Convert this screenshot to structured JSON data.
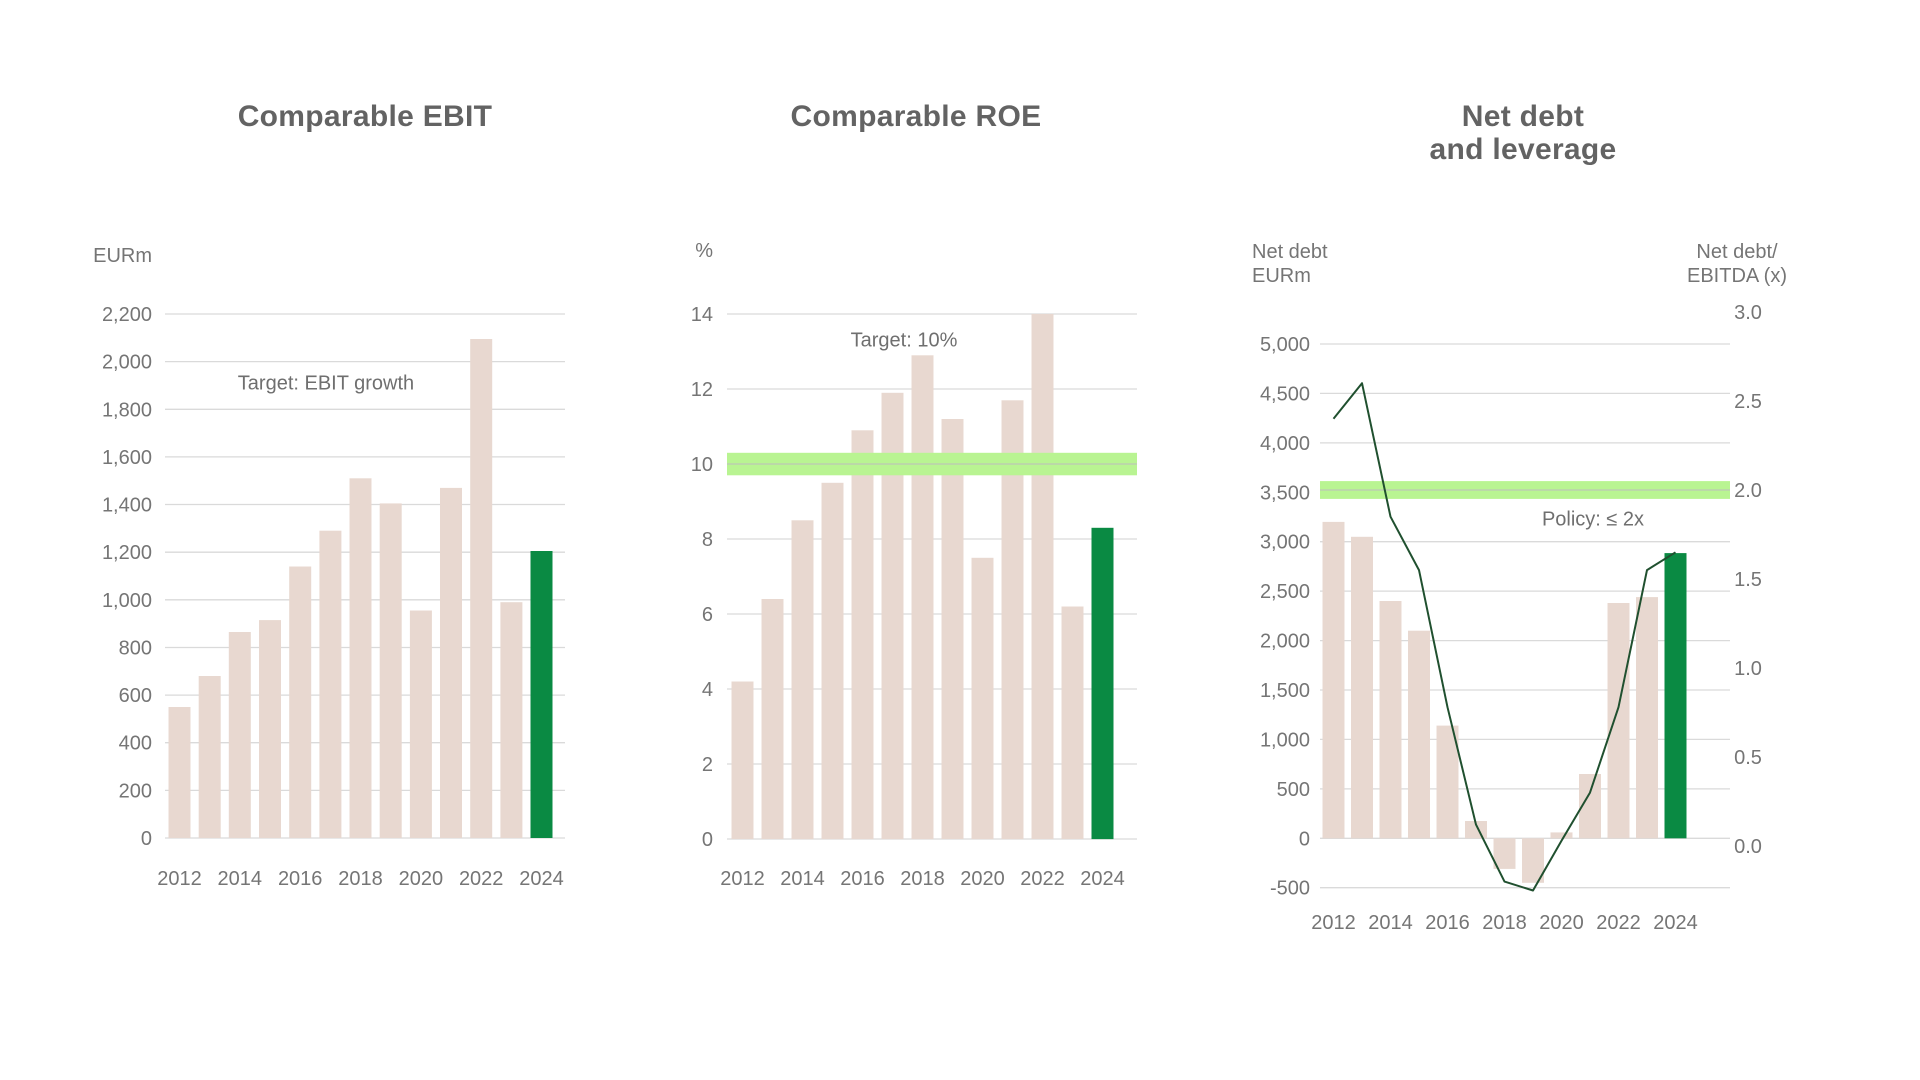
{
  "colors": {
    "bar": "#e8d8d0",
    "highlight_bar": "#0a8a43",
    "target_band": "#b9f492",
    "band_centerline": "#bdbdbd",
    "leverage_line": "#20502f",
    "grid": "#dadada",
    "tick_text": "#757575",
    "title_text": "#636363",
    "annotation_text": "#6f6f6f",
    "background": "#ffffff"
  },
  "chart_data": [
    {
      "type": "bar",
      "title": "Comparable EBIT",
      "ylabel": "EURm",
      "annotation": "Target: EBIT growth",
      "categories": [
        "2012",
        "2013",
        "2014",
        "2015",
        "2016",
        "2017",
        "2018",
        "2019",
        "2020",
        "2021",
        "2022",
        "2023",
        "2024"
      ],
      "values": [
        550,
        680,
        865,
        915,
        1140,
        1290,
        1510,
        1405,
        955,
        1470,
        2095,
        990,
        1205
      ],
      "highlight_year": "2024",
      "ylim": [
        0,
        2200
      ],
      "ytick_step": 200,
      "ytick_labels": [
        "0",
        "200",
        "400",
        "600",
        "800",
        "1,000",
        "1,200",
        "1,400",
        "1,600",
        "1,800",
        "2,000",
        "2,200"
      ],
      "xtick_labels": [
        "2012",
        "2014",
        "2016",
        "2018",
        "2020",
        "2022",
        "2024"
      ],
      "grid": true,
      "legend": "none"
    },
    {
      "type": "bar",
      "title": "Comparable ROE",
      "ylabel": "%",
      "categories": [
        "2012",
        "2013",
        "2014",
        "2015",
        "2016",
        "2017",
        "2018",
        "2019",
        "2020",
        "2021",
        "2022",
        "2023",
        "2024"
      ],
      "values": [
        4.2,
        6.4,
        8.5,
        9.5,
        10.9,
        11.9,
        12.9,
        11.2,
        7.5,
        11.7,
        14.0,
        6.2,
        8.3
      ],
      "highlight_year": "2024",
      "target_band": {
        "label": "Target: 10%",
        "value": 10,
        "half_width": 0.3
      },
      "ylim": [
        0,
        14
      ],
      "ytick_step": 2,
      "ytick_labels": [
        "0",
        "2",
        "4",
        "6",
        "8",
        "10",
        "12",
        "14"
      ],
      "xtick_labels": [
        "2012",
        "2014",
        "2016",
        "2018",
        "2020",
        "2022",
        "2024"
      ],
      "grid": true,
      "legend": "none"
    },
    {
      "type": "bar+line",
      "title": "Net debt and leverage",
      "title_lines": [
        "Net debt",
        "and leverage"
      ],
      "categories": [
        "2012",
        "2013",
        "2014",
        "2015",
        "2016",
        "2017",
        "2018",
        "2019",
        "2020",
        "2021",
        "2022",
        "2023",
        "2024"
      ],
      "left_axis": {
        "label_lines": [
          "Net debt",
          "EURm"
        ],
        "ylim": [
          -500,
          5000
        ],
        "ytick_step": 500,
        "ytick_labels": [
          "-500",
          "0",
          "500",
          "1,000",
          "1,500",
          "2,000",
          "2,500",
          "3,000",
          "3,500",
          "4,000",
          "4,500",
          "5,000"
        ]
      },
      "right_axis": {
        "label_lines": [
          "Net debt/",
          "EBITDA (x)"
        ],
        "ylim": [
          0,
          3
        ],
        "ytick_step": 0.5,
        "ytick_labels": [
          "0.0",
          "0.5",
          "1.0",
          "1.5",
          "2.0",
          "2.5",
          "3.0"
        ]
      },
      "series": [
        {
          "name": "Net debt EURm",
          "type": "bar",
          "axis": "left",
          "values": [
            3200,
            3050,
            2400,
            2100,
            1140,
            175,
            -310,
            -450,
            60,
            650,
            2380,
            2440,
            2885
          ]
        },
        {
          "name": "Net debt/EBITDA (x)",
          "type": "line",
          "axis": "right",
          "values": [
            2.4,
            2.6,
            1.85,
            1.55,
            0.78,
            0.12,
            -0.2,
            -0.25,
            0.03,
            0.3,
            0.78,
            1.55,
            1.65
          ]
        }
      ],
      "highlight_year": "2024",
      "policy_band": {
        "label": "Policy: ≤ 2x",
        "value": 2.0,
        "half_width": 0.05
      },
      "xtick_labels": [
        "2012",
        "2014",
        "2016",
        "2018",
        "2020",
        "2022",
        "2024"
      ],
      "grid": true,
      "legend": "none"
    }
  ]
}
